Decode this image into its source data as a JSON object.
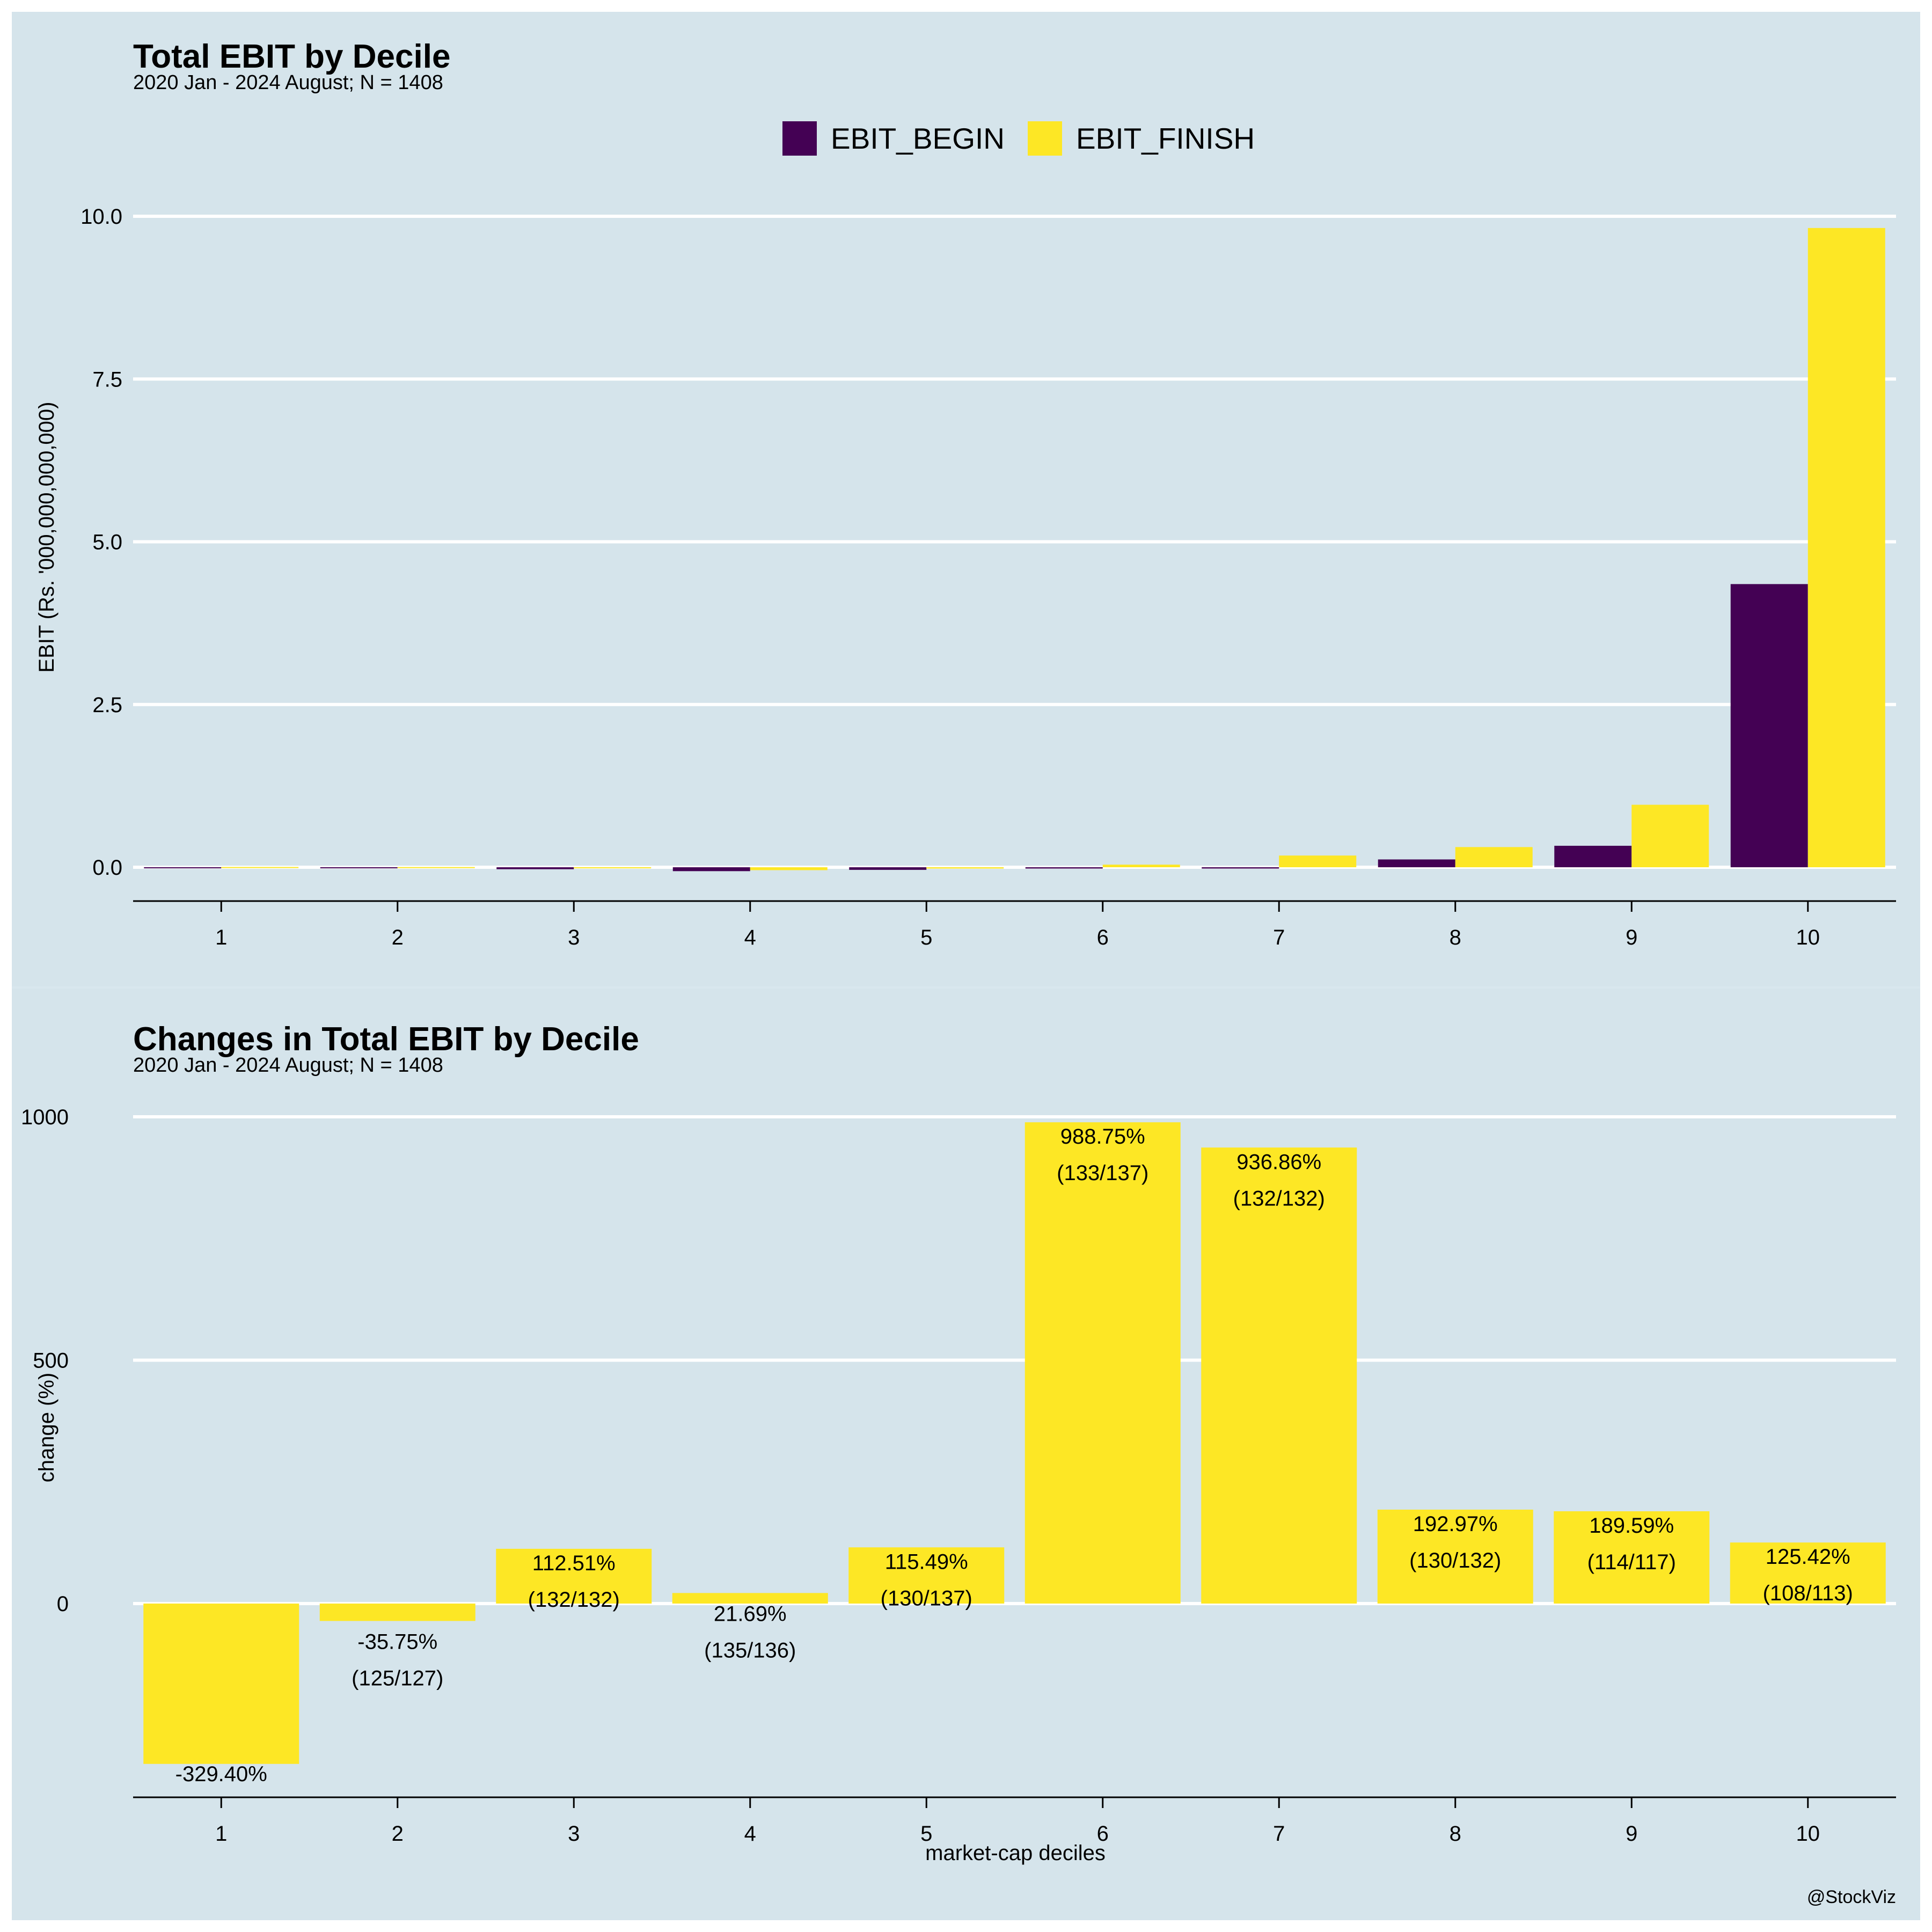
{
  "chart_data": [
    {
      "type": "bar",
      "title": "Total EBIT by Decile",
      "subtitle": "2020 Jan - 2024 August; N = 1408",
      "xlabel": "",
      "ylabel": "EBIT (Rs. '000,000,000,000)",
      "categories": [
        "1",
        "2",
        "3",
        "4",
        "5",
        "6",
        "7",
        "8",
        "9",
        "10"
      ],
      "series": [
        {
          "name": "EBIT_BEGIN",
          "color": "#440154",
          "values": [
            -0.002,
            -0.005,
            -0.03,
            -0.06,
            -0.04,
            -0.02,
            -0.02,
            0.12,
            0.33,
            4.35
          ]
        },
        {
          "name": "EBIT_FINISH",
          "color": "#FDE725",
          "values": [
            0.004,
            0.003,
            -0.005,
            -0.045,
            -0.02,
            0.04,
            0.18,
            0.31,
            0.96,
            9.82
          ]
        }
      ],
      "ylim": [
        -0.55,
        10.6
      ],
      "yticks": [
        "0.0",
        "2.5",
        "5.0",
        "7.5",
        "10.0"
      ],
      "legend": "top-center",
      "grid": "horizontal"
    },
    {
      "type": "bar",
      "title": "Changes in Total EBIT by Decile",
      "subtitle": "2020 Jan - 2024 August; N = 1408",
      "xlabel": "market-cap deciles",
      "ylabel": "change (%)",
      "categories": [
        "1",
        "2",
        "3",
        "4",
        "5",
        "6",
        "7",
        "8",
        "9",
        "10"
      ],
      "values": [
        -329.4,
        -35.75,
        112.51,
        21.69,
        115.49,
        988.75,
        936.86,
        192.97,
        189.59,
        125.42
      ],
      "value_labels": [
        "-329.40%",
        "-35.75%",
        "112.51%",
        "21.69%",
        "115.49%",
        "988.75%",
        "936.86%",
        "192.97%",
        "189.59%",
        "125.42%"
      ],
      "count_labels": [
        "",
        "(125/127)",
        "(132/132)",
        "(135/136)",
        "(130/137)",
        "(133/137)",
        "(132/132)",
        "(130/132)",
        "(114/117)",
        "(108/113)"
      ],
      "color": "#FDE725",
      "ylim": [
        -395,
        1030
      ],
      "yticks": [
        "0",
        "500",
        "1000"
      ],
      "grid": "horizontal"
    }
  ],
  "caption": "@StockViz"
}
